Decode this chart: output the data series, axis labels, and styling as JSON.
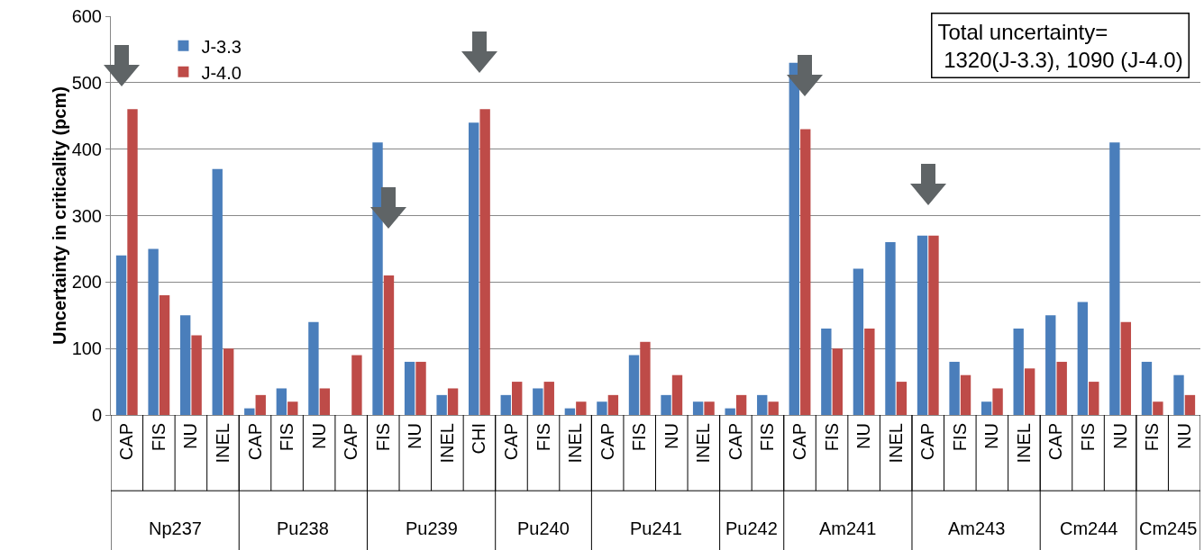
{
  "chart_data": {
    "type": "bar",
    "ylabel": "Uncertainty in criticality (pcm)",
    "categories": [
      "CAP",
      "FIS",
      "NU",
      "INEL",
      "CAP",
      "FIS",
      "NU",
      "CAP",
      "FIS",
      "NU",
      "INEL",
      "CHI",
      "CAP",
      "FIS",
      "INEL",
      "CAP",
      "FIS",
      "NU",
      "INEL",
      "CAP",
      "FIS",
      "CAP",
      "FIS",
      "NU",
      "INEL",
      "CAP",
      "FIS",
      "NU",
      "INEL",
      "CAP",
      "FIS",
      "NU",
      "FIS",
      "NU"
    ],
    "series": [
      {
        "name": "J-3.3",
        "color": "#4a7ebb",
        "values": [
          240,
          250,
          150,
          370,
          10,
          40,
          140,
          0,
          410,
          80,
          30,
          440,
          30,
          40,
          10,
          20,
          90,
          30,
          20,
          10,
          30,
          530,
          130,
          220,
          260,
          270,
          80,
          20,
          130,
          150,
          170,
          410,
          80,
          60
        ]
      },
      {
        "name": "J-4.0",
        "color": "#be4b48",
        "values": [
          460,
          180,
          120,
          100,
          30,
          20,
          40,
          90,
          210,
          80,
          40,
          460,
          50,
          50,
          20,
          30,
          110,
          60,
          20,
          30,
          20,
          430,
          100,
          130,
          50,
          270,
          60,
          40,
          70,
          80,
          50,
          140,
          20,
          30
        ]
      }
    ],
    "ylim": [
      0,
      600
    ],
    "yticks": [
      0,
      100,
      200,
      300,
      400,
      500,
      600
    ],
    "grid": "y",
    "legend": "top left",
    "annotations": [
      "Np237",
      "Pu238",
      "Pu239",
      "Pu240",
      "Pu241",
      "Pu242",
      "Am241",
      "Am243",
      "Cm244",
      "Cm245",
      "Total uncertainty=\n 1320(J-3.3), 1090 (J-4.0)"
    ]
  }
}
